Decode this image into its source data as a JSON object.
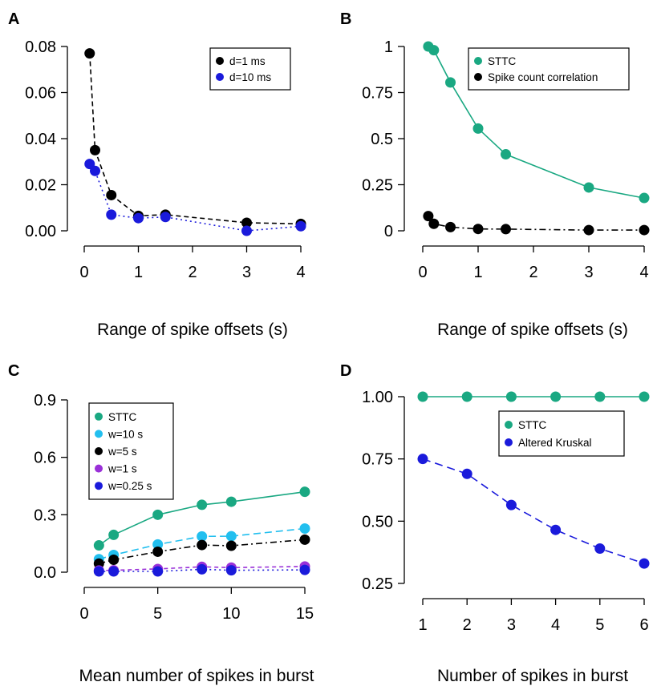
{
  "chart_data": [
    {
      "panel_label": "A",
      "type": "line",
      "xlabel": "Range of spike offsets (s)",
      "ylabel": "",
      "xlim": [
        0,
        4
      ],
      "ylim": [
        0,
        0.08
      ],
      "xticks": [
        0,
        1,
        2,
        3,
        4
      ],
      "yticks": [
        0,
        0.02,
        0.04,
        0.06,
        0.08
      ],
      "ytick_labels": [
        "0.00",
        "0.02",
        "0.04",
        "0.06",
        "0.08"
      ],
      "legend_position": "top-right",
      "x": [
        0.1,
        0.2,
        0.5,
        1,
        1.5,
        3,
        4
      ],
      "series": [
        {
          "name": "d=1 ms",
          "color": "#000000",
          "dash": "6,4",
          "values": [
            0.077,
            0.035,
            0.0155,
            0.0065,
            0.007,
            0.0035,
            0.003
          ]
        },
        {
          "name": "d=10 ms",
          "color": "#1a1adb",
          "dash": "2,4",
          "values": [
            0.029,
            0.026,
            0.007,
            0.0055,
            0.006,
            0.0,
            0.002
          ]
        }
      ]
    },
    {
      "panel_label": "B",
      "type": "line",
      "xlabel": "Range of spike offsets (s)",
      "ylabel": "",
      "xlim": [
        0,
        4
      ],
      "ylim": [
        0,
        1
      ],
      "xticks": [
        0,
        1,
        2,
        3,
        4
      ],
      "yticks": [
        0,
        0.25,
        0.5,
        0.75,
        1
      ],
      "ytick_labels": [
        "0",
        "0.25",
        "0.5",
        "0.75",
        "1"
      ],
      "legend_position": "top-right",
      "x": [
        0.1,
        0.2,
        0.5,
        1,
        1.5,
        3,
        4
      ],
      "series": [
        {
          "name": "STTC",
          "color": "#1aa882",
          "dash": "",
          "values": [
            1.0,
            0.98,
            0.805,
            0.555,
            0.415,
            0.235,
            0.178
          ]
        },
        {
          "name": "Spike count correlation",
          "color": "#000000",
          "dash": "8,4,2,4",
          "values": [
            0.08,
            0.038,
            0.02,
            0.01,
            0.009,
            0.004,
            0.004
          ]
        }
      ]
    },
    {
      "panel_label": "C",
      "type": "line",
      "xlabel": "Mean number of spikes in burst",
      "ylabel": "",
      "xlim": [
        0,
        15
      ],
      "ylim": [
        0,
        0.9
      ],
      "xticks": [
        0,
        5,
        10,
        15
      ],
      "yticks": [
        0,
        0.3,
        0.6,
        0.9
      ],
      "ytick_labels": [
        "0.0",
        "0.3",
        "0.6",
        "0.9"
      ],
      "legend_position": "top-left",
      "x": [
        1,
        2,
        5,
        8,
        10,
        15
      ],
      "series": [
        {
          "name": "STTC",
          "color": "#1aa882",
          "dash": "",
          "values": [
            0.14,
            0.195,
            0.3,
            0.352,
            0.368,
            0.42
          ]
        },
        {
          "name": "w=10 s",
          "color": "#22bfef",
          "dash": "9,5",
          "values": [
            0.068,
            0.09,
            0.145,
            0.187,
            0.188,
            0.228
          ]
        },
        {
          "name": "w=5 s",
          "color": "#000000",
          "dash": "8,4,2,4",
          "values": [
            0.045,
            0.065,
            0.107,
            0.142,
            0.138,
            0.17
          ]
        },
        {
          "name": "w=1 s",
          "color": "#9a30d8",
          "dash": "5,4",
          "values": [
            0.009,
            0.01,
            0.017,
            0.028,
            0.024,
            0.03
          ]
        },
        {
          "name": "w=0.25 s",
          "color": "#1a1adb",
          "dash": "2,4",
          "values": [
            0.004,
            0.004,
            0.004,
            0.015,
            0.01,
            0.012
          ]
        }
      ]
    },
    {
      "panel_label": "D",
      "type": "line",
      "xlabel": "Number of spikes in burst",
      "ylabel": "",
      "xlim": [
        1,
        6
      ],
      "ylim": [
        0.25,
        1
      ],
      "xticks": [
        1,
        2,
        3,
        4,
        5,
        6
      ],
      "yticks": [
        0.25,
        0.5,
        0.75,
        1
      ],
      "ytick_labels": [
        "0.25",
        "0.50",
        "0.75",
        "1.00"
      ],
      "legend_position": "top-right",
      "x": [
        1,
        2,
        3,
        4,
        5,
        6
      ],
      "series": [
        {
          "name": "STTC",
          "color": "#1aa882",
          "dash": "",
          "values": [
            1.0,
            1.0,
            1.0,
            1.0,
            1.0,
            1.0
          ]
        },
        {
          "name": "Altered Kruskal",
          "color": "#1a1adb",
          "dash": "10,6",
          "values": [
            0.75,
            0.69,
            0.565,
            0.465,
            0.39,
            0.33
          ]
        }
      ]
    }
  ]
}
